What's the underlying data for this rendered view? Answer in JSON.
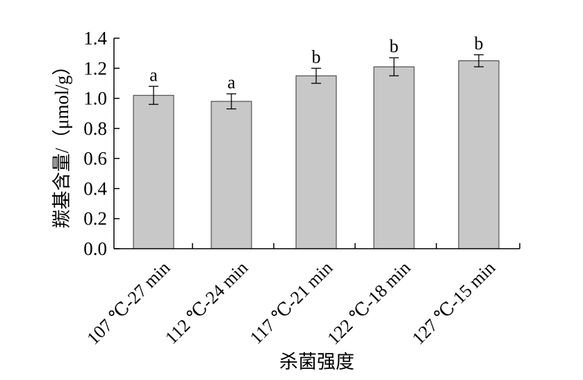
{
  "chart_data": {
    "type": "bar",
    "categories": [
      "107 ℃-27 min",
      "112 ℃-24 min",
      "117 ℃-21 min",
      "122 ℃-18 min",
      "127 ℃-15 min"
    ],
    "values": [
      1.02,
      0.98,
      1.15,
      1.21,
      1.25
    ],
    "errors": [
      0.06,
      0.05,
      0.05,
      0.06,
      0.04
    ],
    "significance": [
      "a",
      "a",
      "b",
      "b",
      "b"
    ],
    "xlabel": "杀菌强度",
    "ylabel": "羰基含量/（μmol/g）",
    "ylim": [
      0,
      1.4
    ],
    "yticks": [
      "0.0",
      "0.2",
      "0.4",
      "0.6",
      "0.8",
      "1.0",
      "1.2",
      "1.4"
    ],
    "grid": false,
    "bar_color": "#c8c8c8"
  }
}
